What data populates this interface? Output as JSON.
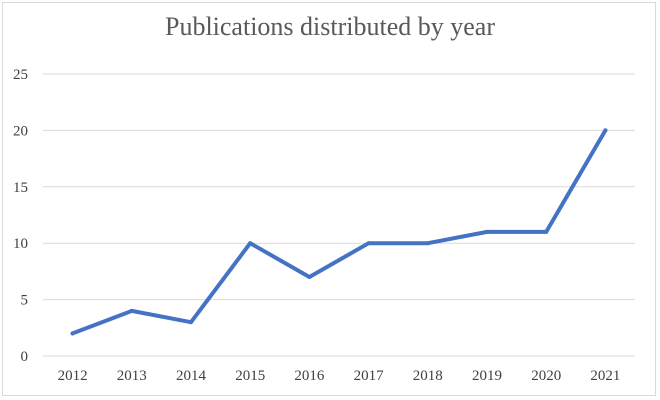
{
  "chart_data": {
    "type": "line",
    "title": "Publications distributed by year",
    "xlabel": "",
    "ylabel": "",
    "categories": [
      "2012",
      "2013",
      "2014",
      "2015",
      "2016",
      "2017",
      "2018",
      "2019",
      "2020",
      "2021"
    ],
    "series": [
      {
        "values": [
          2,
          4,
          3,
          10,
          7,
          10,
          10,
          11,
          11,
          20
        ],
        "color": "#4472c4"
      }
    ],
    "ylim": [
      0,
      25
    ],
    "yticks": [
      0,
      5,
      10,
      15,
      20,
      25
    ],
    "grid": true,
    "legend": "none"
  }
}
